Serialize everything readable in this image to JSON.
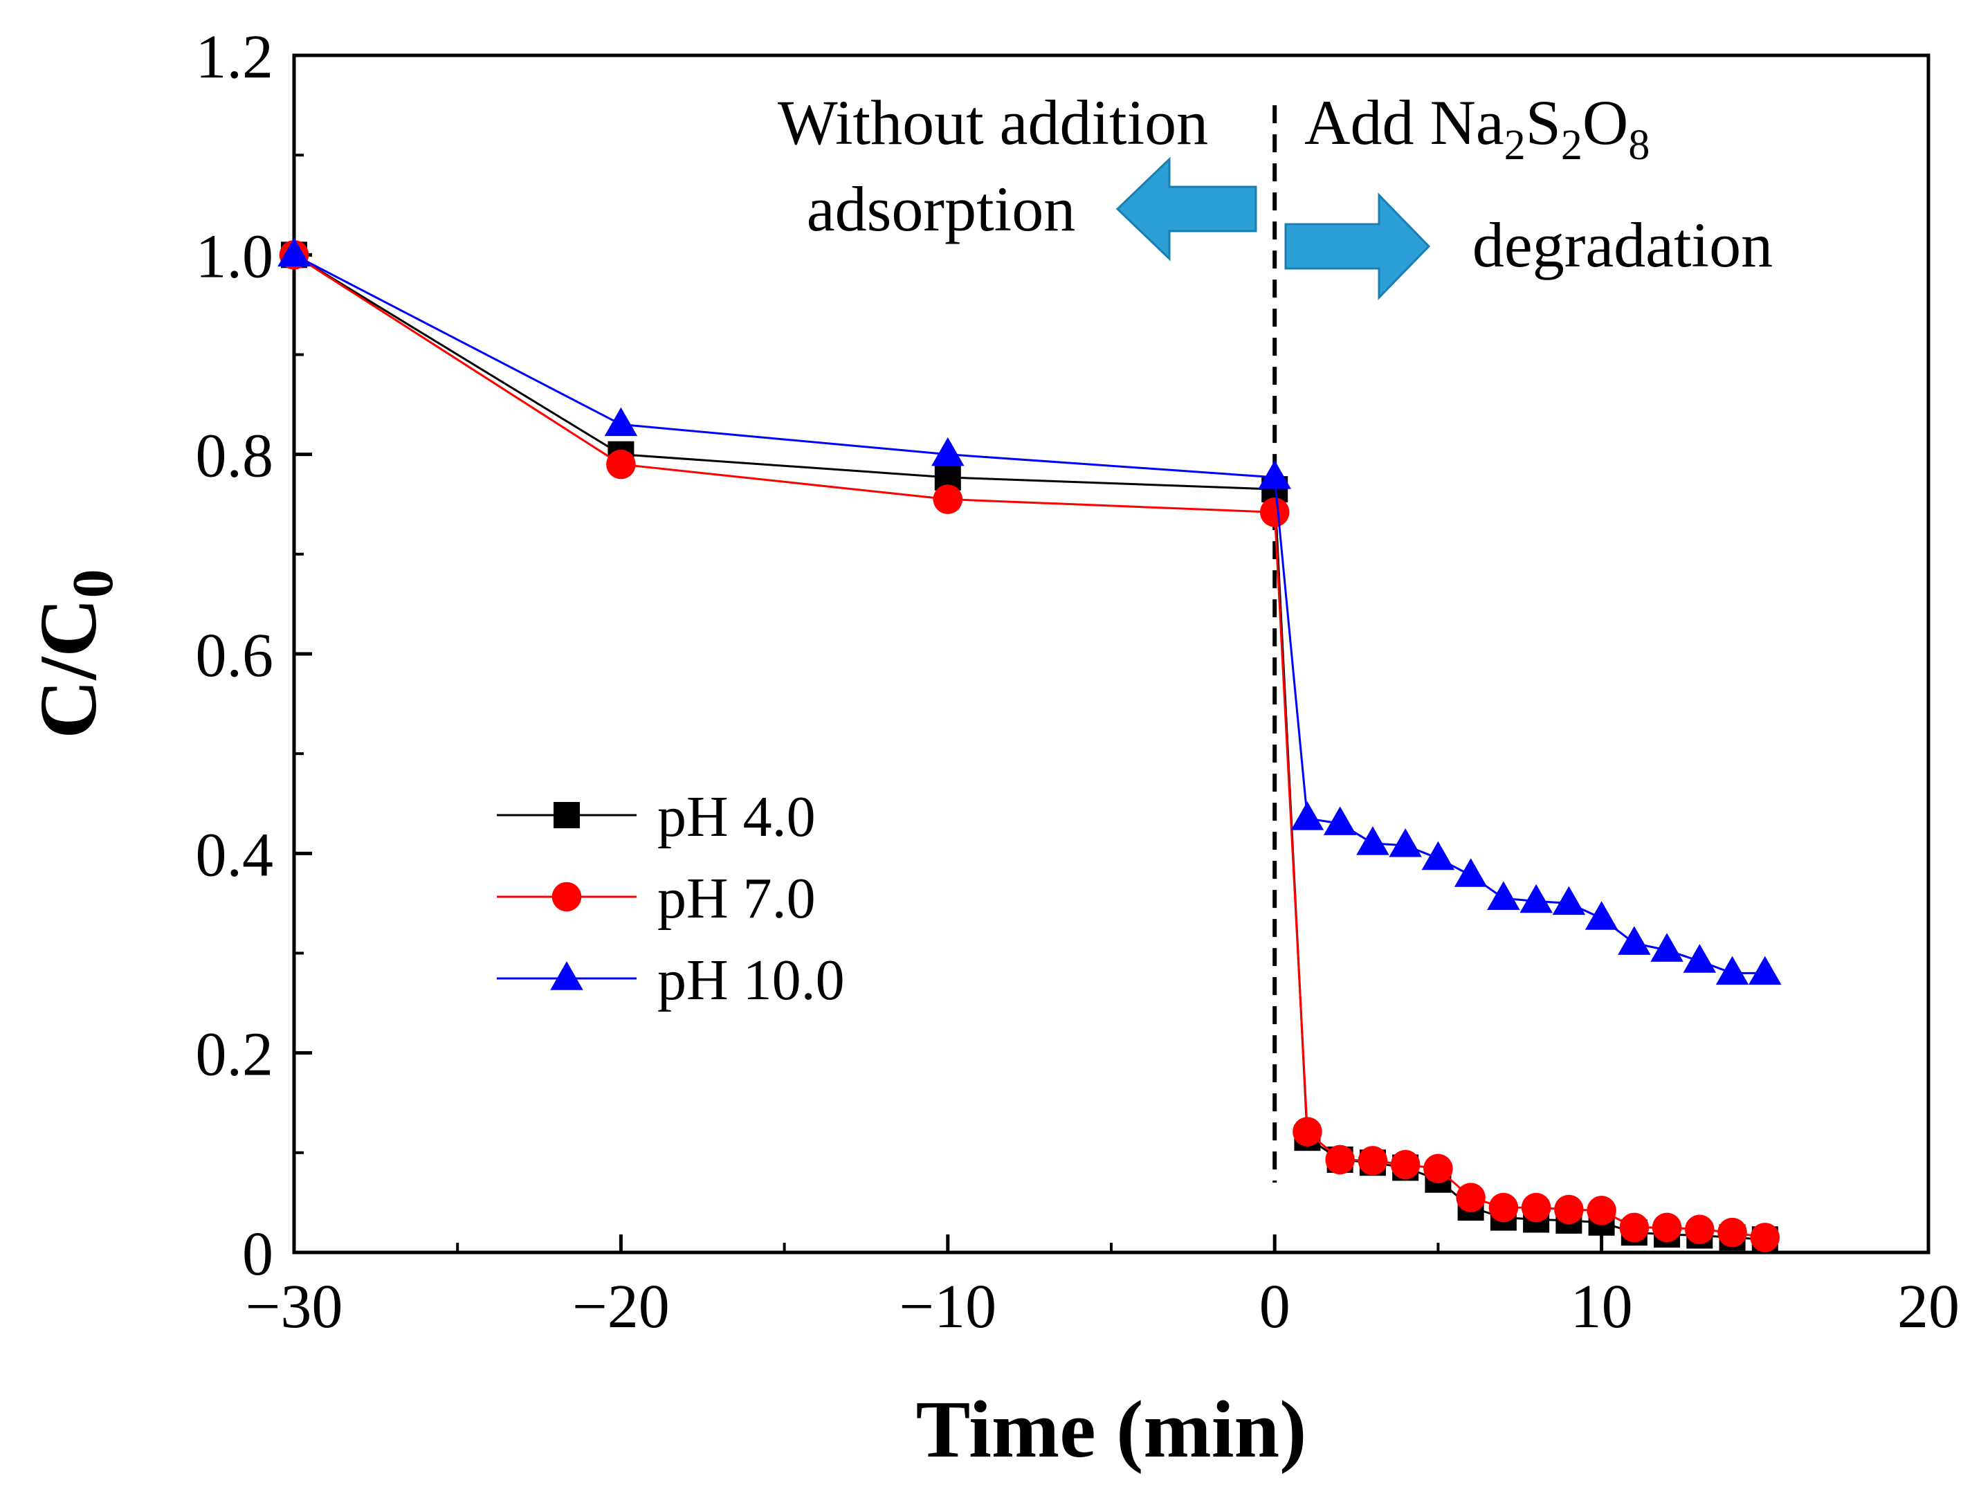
{
  "chart_data": {
    "type": "line",
    "title": "",
    "xlabel": "Time (min)",
    "ylabel": {
      "main": "C/C",
      "sub": "0"
    },
    "xlim": [
      -30,
      20
    ],
    "ylim": [
      0,
      1.2
    ],
    "xticks": [
      -30,
      -20,
      -10,
      0,
      10,
      20
    ],
    "xtick_labels": [
      "−30",
      "−20",
      "−10",
      "0",
      "10",
      "20"
    ],
    "yticks": [
      0,
      0.2,
      0.4,
      0.6,
      0.8,
      1.0,
      1.2
    ],
    "ytick_labels": [
      "0",
      "0.2",
      "0.4",
      "0.6",
      "0.8",
      "1.0",
      "1.2"
    ],
    "x": [
      -30,
      -20,
      -10,
      0,
      1,
      2,
      3,
      4,
      5,
      6,
      7,
      8,
      9,
      10,
      11,
      12,
      13,
      14,
      15
    ],
    "series": [
      {
        "name": "pH 4.0",
        "color": "#000000",
        "marker": "square",
        "values": [
          1.0,
          0.8,
          0.777,
          0.765,
          0.115,
          0.093,
          0.09,
          0.085,
          0.073,
          0.045,
          0.035,
          0.033,
          0.032,
          0.03,
          0.02,
          0.018,
          0.017,
          0.015,
          0.013
        ]
      },
      {
        "name": "pH 7.0",
        "color": "#ff0000",
        "marker": "circle",
        "values": [
          1.0,
          0.79,
          0.755,
          0.742,
          0.121,
          0.093,
          0.092,
          0.088,
          0.084,
          0.055,
          0.045,
          0.045,
          0.043,
          0.042,
          0.025,
          0.025,
          0.023,
          0.02,
          0.015
        ]
      },
      {
        "name": "pH 10.0",
        "color": "#0000ff",
        "marker": "triangle",
        "values": [
          1.0,
          0.83,
          0.8,
          0.777,
          0.435,
          0.43,
          0.41,
          0.408,
          0.395,
          0.378,
          0.355,
          0.352,
          0.35,
          0.335,
          0.31,
          0.303,
          0.292,
          0.28,
          0.28
        ]
      }
    ],
    "vline": {
      "x": 0,
      "y_from": 0.07,
      "y_to": 1.15,
      "style": "dashed"
    },
    "legend": {
      "position": "middle-left"
    },
    "annotations": {
      "left_line1": "Without addition",
      "left_line2": "adsorption",
      "right_line1": "Add Na",
      "right_sub1": "2",
      "right_mid1": "S",
      "right_sub2": "2",
      "right_mid2": "O",
      "right_sub3": "8",
      "right_line2": "degradation",
      "arrow_color": "#2b9fd6"
    }
  }
}
